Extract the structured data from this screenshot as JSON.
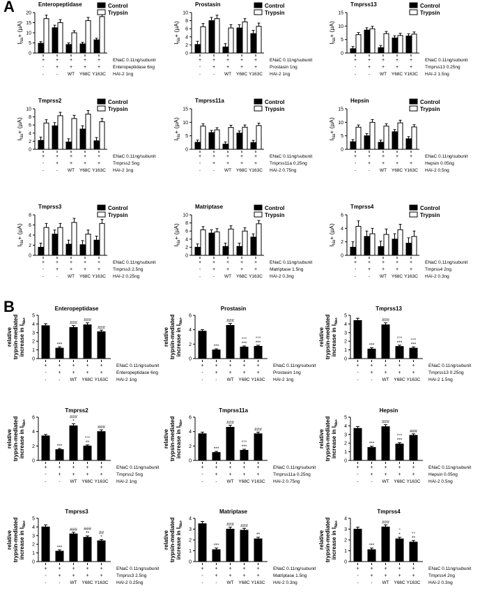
{
  "panel_labels": [
    "A",
    "B"
  ],
  "legend": {
    "control": "Control",
    "trypsin": "Trypsin"
  },
  "ylabels": {
    "a": [
      "I",
      "Na",
      "+ (µA)"
    ],
    "b": [
      "relative",
      "trypsin-mediated",
      "increase in I",
      "Na+"
    ]
  },
  "row_labels": {
    "enac": "ENaC 0.11ng/subunit",
    "wt": "WT",
    "y68c": "Y68C",
    "y163c": "Y163C"
  },
  "colors": {
    "control": "#000000",
    "trypsin": "#ffffff",
    "axis": "#000000"
  },
  "chart_data": [
    {
      "panel": "A",
      "title": "Enteropeptidase",
      "type": "bar",
      "ylim": [
        0,
        20
      ],
      "yticks": [
        0,
        5,
        10,
        15,
        20
      ],
      "protease_label": "Enteropeptidase 6ng",
      "hai_label": "HAI-2 1ng",
      "series": [
        {
          "name": "Control",
          "values": [
            4.8,
            12.5,
            4.2,
            4.5,
            6.5
          ]
        },
        {
          "name": "Trypsin",
          "values": [
            17,
            15,
            10,
            16,
            18
          ]
        }
      ]
    },
    {
      "panel": "A",
      "title": "Prostasin",
      "type": "bar",
      "ylim": [
        0,
        10
      ],
      "yticks": [
        0,
        2,
        4,
        6,
        8,
        10
      ],
      "protease_label": "Prostasin 1ng",
      "hai_label": "HAI-2 1ng",
      "series": [
        {
          "name": "Control",
          "values": [
            2.1,
            8.0,
            1.5,
            6.2,
            4.8
          ]
        },
        {
          "name": "Trypsin",
          "values": [
            6.5,
            8.5,
            6.2,
            7.7,
            6.6
          ]
        }
      ]
    },
    {
      "panel": "A",
      "title": "Tmprss13",
      "type": "bar",
      "ylim": [
        0,
        15
      ],
      "yticks": [
        0,
        5,
        10,
        15
      ],
      "protease_label": "Tmprss13 0.25ng",
      "hai_label": "HAI-2 1.5ng",
      "series": [
        {
          "name": "Control",
          "values": [
            1.6,
            8.5,
            2.0,
            5.6,
            6.3
          ]
        },
        {
          "name": "Trypsin",
          "values": [
            6.8,
            9.0,
            7.2,
            6.5,
            7.0
          ]
        }
      ]
    },
    {
      "panel": "A",
      "title": "Tmprss2",
      "type": "bar",
      "ylim": [
        0,
        10
      ],
      "yticks": [
        0,
        2,
        4,
        6,
        8,
        10
      ],
      "protease_label": "Tmprss2 5ng",
      "hai_label": "HAI-2 1ng",
      "series": [
        {
          "name": "Control",
          "values": [
            2.2,
            5.8,
            1.8,
            5.0,
            2.1
          ]
        },
        {
          "name": "Trypsin",
          "values": [
            6.5,
            8.3,
            7.6,
            8.7,
            6.8
          ]
        }
      ]
    },
    {
      "panel": "A",
      "title": "Tmprss11a",
      "type": "bar",
      "ylim": [
        0,
        15
      ],
      "yticks": [
        0,
        5,
        10,
        15
      ],
      "protease_label": "Tmprss11a 0.25ng",
      "hai_label": "HAI-2 0.75ng",
      "series": [
        {
          "name": "Control",
          "values": [
            2.6,
            6.2,
            1.9,
            6.0,
            2.5
          ]
        },
        {
          "name": "Trypsin",
          "values": [
            8.6,
            7.2,
            8.1,
            8.2,
            8.8
          ]
        }
      ]
    },
    {
      "panel": "A",
      "title": "Hepsin",
      "type": "bar",
      "ylim": [
        0,
        15
      ],
      "yticks": [
        0,
        5,
        10,
        15
      ],
      "protease_label": "Hepsin 0.05ng",
      "hai_label": "HAI-2 0.5ng",
      "series": [
        {
          "name": "Control",
          "values": [
            2.8,
            5.0,
            2.6,
            6.5,
            3.9
          ]
        },
        {
          "name": "Trypsin",
          "values": [
            8.2,
            10.0,
            8.6,
            9.8,
            8.3
          ]
        }
      ]
    },
    {
      "panel": "A",
      "title": "Tmprss3",
      "type": "bar",
      "ylim": [
        0,
        8
      ],
      "yticks": [
        0,
        2,
        4,
        6,
        8
      ],
      "protease_label": "Tmprss3 2.5ng",
      "hai_label": "HAI-2 0.25ng",
      "series": [
        {
          "name": "Control",
          "values": [
            1.6,
            4.2,
            2.2,
            2.1,
            3.0
          ]
        },
        {
          "name": "Trypsin",
          "values": [
            5.5,
            5.5,
            6.5,
            4.2,
            6.3
          ]
        }
      ]
    },
    {
      "panel": "A",
      "title": "Matriptase",
      "type": "bar",
      "ylim": [
        0,
        10
      ],
      "yticks": [
        0,
        2,
        4,
        6,
        8,
        10
      ],
      "protease_label": "Matriptase 1.5ng",
      "hai_label": "HAI-2 0.3ng",
      "series": [
        {
          "name": "Control",
          "values": [
            2.0,
            5.5,
            2.2,
            2.2,
            4.5
          ]
        },
        {
          "name": "Trypsin",
          "values": [
            6.3,
            5.8,
            6.5,
            6.0,
            7.8
          ]
        }
      ]
    },
    {
      "panel": "A",
      "title": "Tmprss4",
      "type": "bar",
      "ylim": [
        0,
        6
      ],
      "yticks": [
        0,
        2,
        4,
        6
      ],
      "protease_label": "Tmprss4 2ng",
      "hai_label": "HAI-2 0.3ng",
      "series": [
        {
          "name": "Control",
          "values": [
            1.2,
            2.8,
            1.3,
            2.4,
            1.8
          ]
        },
        {
          "name": "Trypsin",
          "values": [
            4.3,
            3.2,
            3.1,
            3.8,
            2.8
          ]
        }
      ]
    },
    {
      "panel": "B",
      "title": "Enteropeptidase",
      "type": "bar",
      "ylim": [
        0,
        5
      ],
      "yticks": [
        0,
        1,
        2,
        3,
        4,
        5
      ],
      "protease_label": "Enteropeptidase 6ng",
      "hai_label": "HAI-2 1ng",
      "values": [
        3.8,
        1.2,
        3.6,
        3.9,
        3.1
      ],
      "annotations": [
        "",
        "***",
        "###",
        "###",
        "###"
      ]
    },
    {
      "panel": "B",
      "title": "Prostasin",
      "type": "bar",
      "ylim": [
        0,
        6
      ],
      "yticks": [
        0,
        2,
        4,
        6
      ],
      "protease_label": "Prostasin 1ng",
      "hai_label": "HAI-2 1ng",
      "values": [
        3.8,
        1.2,
        4.6,
        1.6,
        1.7
      ],
      "annotations": [
        "",
        "***",
        "###",
        "°°°\n***",
        "°°°\n***"
      ]
    },
    {
      "panel": "B",
      "title": "Tmprss13",
      "type": "bar",
      "ylim": [
        0,
        5
      ],
      "yticks": [
        0,
        1,
        2,
        3,
        4,
        5
      ],
      "protease_label": "Tmprss13 0.25ng",
      "hai_label": "HAI-2 1.5ng",
      "values": [
        4.4,
        1.1,
        3.9,
        1.4,
        1.2
      ],
      "annotations": [
        "",
        "***",
        "###",
        "°°°\n***",
        "°°°\n***"
      ]
    },
    {
      "panel": "B",
      "title": "Tmprss2",
      "type": "bar",
      "ylim": [
        0,
        6
      ],
      "yticks": [
        0,
        2,
        4,
        6
      ],
      "protease_label": "Tmprss2 5ng",
      "hai_label": "HAI-2 1ng",
      "values": [
        3.4,
        1.5,
        4.8,
        2.0,
        4.0
      ],
      "annotations": [
        "",
        "***",
        "###\n*",
        "°°°\n**",
        "###"
      ]
    },
    {
      "panel": "B",
      "title": "Tmprss11a",
      "type": "bar",
      "ylim": [
        0,
        6
      ],
      "yticks": [
        0,
        2,
        4,
        6
      ],
      "protease_label": "Tmprss11a 0.25ng",
      "hai_label": "HAI-2 0.75ng",
      "values": [
        3.7,
        1.1,
        4.6,
        1.4,
        3.7
      ],
      "annotations": [
        "",
        "***",
        "###",
        "°°°\n***",
        "###"
      ]
    },
    {
      "panel": "B",
      "title": "Hepsin",
      "type": "bar",
      "ylim": [
        0,
        5
      ],
      "yticks": [
        0,
        1,
        2,
        3,
        4,
        5
      ],
      "protease_label": "Hepsin 0.05ng",
      "hai_label": "HAI-2 0.5ng",
      "values": [
        3.7,
        1.5,
        3.9,
        1.9,
        2.9
      ],
      "annotations": [
        "",
        "***",
        "###",
        "°°°\n***",
        "###"
      ]
    },
    {
      "panel": "B",
      "title": "Tmprss3",
      "type": "bar",
      "ylim": [
        0,
        5
      ],
      "yticks": [
        0,
        1,
        2,
        3,
        4,
        5
      ],
      "protease_label": "Tmprss3 2.5ng",
      "hai_label": "HAI-2 0.25ng",
      "values": [
        4.0,
        1.2,
        3.2,
        2.8,
        2.4
      ],
      "annotations": [
        "",
        "***",
        "###",
        "###\n**",
        "##\n*"
      ]
    },
    {
      "panel": "B",
      "title": "Matriptase",
      "type": "bar",
      "ylim": [
        0,
        4
      ],
      "yticks": [
        0,
        1,
        2,
        3,
        4
      ],
      "protease_label": "Matriptase 1.5ng",
      "hai_label": "HAI-2 0.3ng",
      "values": [
        3.5,
        1.1,
        3.0,
        2.9,
        2.1
      ],
      "annotations": [
        "",
        "***",
        "###",
        "###",
        "**"
      ]
    },
    {
      "panel": "B",
      "title": "Tmprss4",
      "type": "bar",
      "ylim": [
        0,
        4
      ],
      "yticks": [
        0,
        1,
        2,
        3,
        4
      ],
      "protease_label": "Tmprss4 2ng",
      "hai_label": "HAI-2 0.3ng",
      "values": [
        3.0,
        1.1,
        3.2,
        2.1,
        1.8
      ],
      "annotations": [
        "",
        "***",
        "###",
        "°\n*",
        "°°\n**"
      ]
    }
  ]
}
